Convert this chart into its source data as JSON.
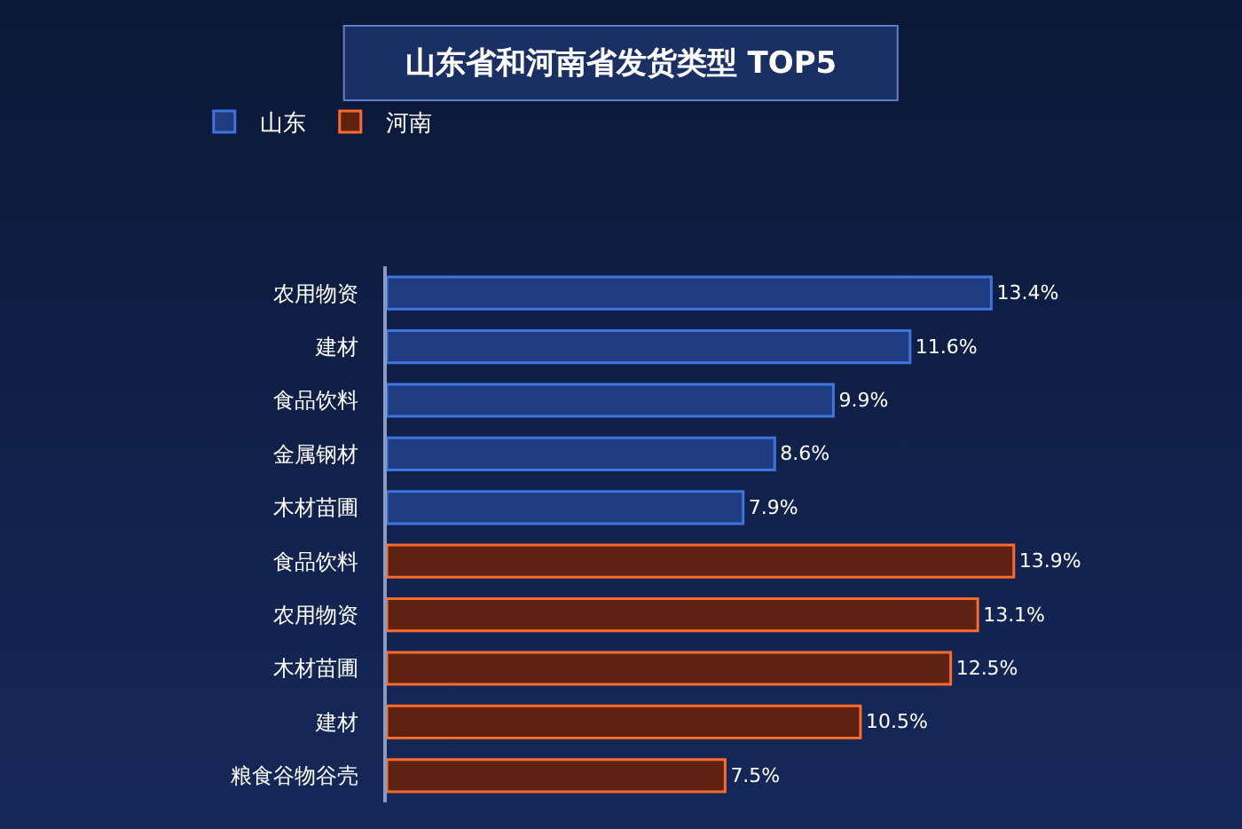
{
  "chart_data": {
    "type": "bar",
    "orientation": "horizontal",
    "title": "山东省和河南省发货类型 TOP5",
    "categories": [
      "农用物资",
      "建材",
      "食品饮料",
      "金属钢材",
      "木材苗圃",
      "食品饮料",
      "农用物资",
      "木材苗圃",
      "建材",
      "粮食谷物谷壳"
    ],
    "series": [
      {
        "name": "山东",
        "color": "#1f3c80",
        "values": [
          13.4,
          11.6,
          9.9,
          8.6,
          7.9,
          null,
          null,
          null,
          null,
          null
        ],
        "value_labels": [
          "13.4%",
          "11.6%",
          "9.9%",
          "8.6%",
          "7.9%",
          null,
          null,
          null,
          null,
          null
        ]
      },
      {
        "name": "河南",
        "color": "#5e2212",
        "values": [
          null,
          null,
          null,
          null,
          null,
          13.9,
          13.1,
          12.5,
          10.5,
          7.5
        ],
        "value_labels": [
          null,
          null,
          null,
          null,
          null,
          "13.9%",
          "13.1%",
          "12.5%",
          "10.5%",
          "7.5%"
        ]
      }
    ],
    "grid": false,
    "legend": "top left"
  }
}
